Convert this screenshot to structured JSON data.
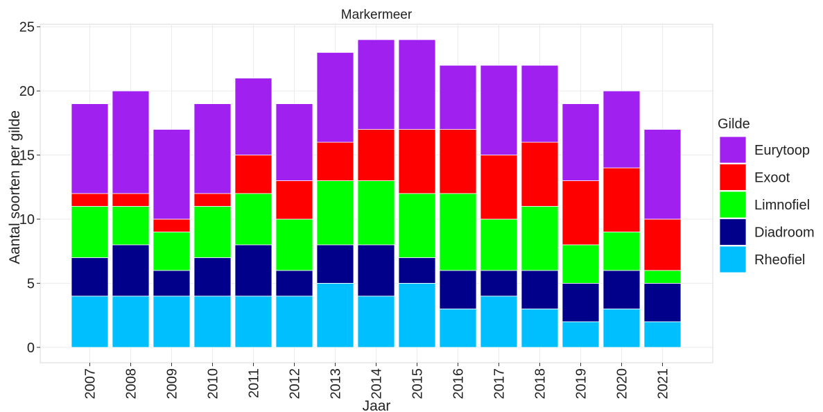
{
  "chart_data": {
    "type": "stacked_bar",
    "title": "Markermeer",
    "x_label": "Jaar",
    "y_label": "Aantal soorten per gilde",
    "legend_title": "Gilde",
    "categories": [
      "2007",
      "2008",
      "2009",
      "2010",
      "2011",
      "2012",
      "2013",
      "2014",
      "2015",
      "2016",
      "2017",
      "2018",
      "2019",
      "2020",
      "2021"
    ],
    "series": [
      {
        "name": "Rheofiel",
        "color": "#00bfff",
        "values": [
          4,
          4,
          4,
          4,
          4,
          4,
          5,
          4,
          5,
          3,
          4,
          3,
          2,
          3,
          2
        ]
      },
      {
        "name": "Diadroom",
        "color": "#00008b",
        "values": [
          3,
          4,
          2,
          3,
          4,
          2,
          3,
          4,
          2,
          3,
          2,
          3,
          3,
          3,
          3
        ]
      },
      {
        "name": "Limnofiel",
        "color": "#00ff00",
        "values": [
          4,
          3,
          3,
          4,
          4,
          4,
          5,
          5,
          5,
          6,
          4,
          5,
          3,
          3,
          1
        ]
      },
      {
        "name": "Exoot",
        "color": "#ff0000",
        "values": [
          1,
          1,
          1,
          1,
          3,
          3,
          3,
          4,
          5,
          5,
          5,
          5,
          5,
          5,
          4
        ]
      },
      {
        "name": "Eurytoop",
        "color": "#a020f0",
        "values": [
          7,
          8,
          7,
          7,
          6,
          6,
          7,
          7,
          7,
          5,
          7,
          6,
          6,
          6,
          7
        ]
      }
    ],
    "ylim": [
      -1.2,
      25.2
    ],
    "yticks": [
      0,
      5,
      10,
      15,
      20,
      25
    ],
    "grid": true,
    "legend_position": "right"
  }
}
